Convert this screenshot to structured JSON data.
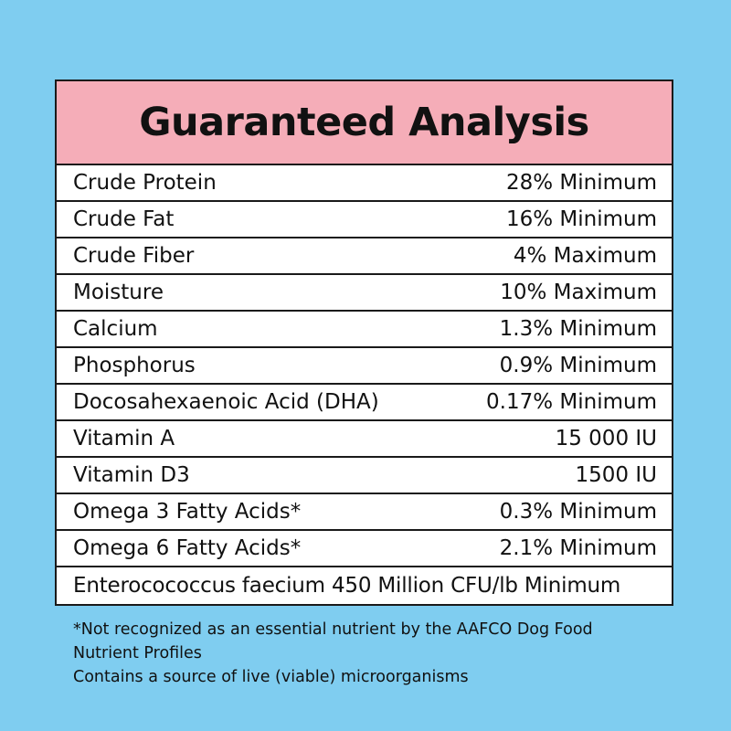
{
  "header": {
    "title": "Guaranteed Analysis"
  },
  "rows": [
    {
      "name": "Crude Protein",
      "value": "28% Minimum"
    },
    {
      "name": "Crude Fat",
      "value": "16% Minimum"
    },
    {
      "name": "Crude Fiber",
      "value": "4% Maximum"
    },
    {
      "name": "Moisture",
      "value": "10% Maximum"
    },
    {
      "name": "Calcium",
      "value": "1.3% Minimum"
    },
    {
      "name": "Phosphorus",
      "value": "0.9% Minimum"
    },
    {
      "name": "Docosahexaenoic Acid (DHA)",
      "value": "0.17% Minimum"
    },
    {
      "name": "Vitamin A",
      "value": "15 000 IU"
    },
    {
      "name": "Vitamin D3",
      "value": "1500 IU"
    },
    {
      "name": "Omega 3 Fatty Acids*",
      "value": "0.3% Minimum"
    },
    {
      "name": "Omega 6 Fatty Acids*",
      "value": "2.1% Minimum"
    },
    {
      "name": "Enterocococcus faecium 450 Million CFU/lb Minimum",
      "value": ""
    }
  ],
  "footnotes": {
    "line1": "*Not recognized as an essential nutrient by the AAFCO Dog Food",
    "line2": "Nutrient Profiles",
    "line3": "Contains a source of live (viable) microorganisms"
  },
  "colors": {
    "background": "#7fcdf0",
    "header": "#f5adb8",
    "border": "#1a1a1a"
  }
}
